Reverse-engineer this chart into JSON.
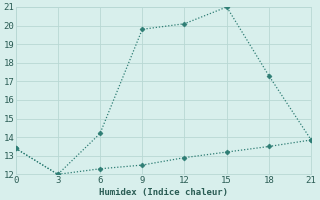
{
  "line1_x": [
    0,
    3,
    6,
    9,
    12,
    15,
    18,
    21
  ],
  "line1_y": [
    13.4,
    12.0,
    14.2,
    19.8,
    20.1,
    21.0,
    17.3,
    13.85
  ],
  "line2_x": [
    0,
    3,
    6,
    9,
    12,
    15,
    18,
    21
  ],
  "line2_y": [
    13.4,
    12.0,
    12.3,
    12.5,
    12.9,
    13.2,
    13.5,
    13.85
  ],
  "line_color": "#2e7d74",
  "bg_color": "#d8efec",
  "grid_color": "#b8d8d4",
  "xlabel": "Humidex (Indice chaleur)",
  "xlim": [
    0,
    21
  ],
  "ylim": [
    12,
    21
  ],
  "xticks": [
    0,
    3,
    6,
    9,
    12,
    15,
    18,
    21
  ],
  "yticks": [
    12,
    13,
    14,
    15,
    16,
    17,
    18,
    19,
    20,
    21
  ],
  "font_color": "#2a5c54",
  "markersize": 2.5,
  "linewidth": 0.9,
  "tick_fontsize": 6.5
}
